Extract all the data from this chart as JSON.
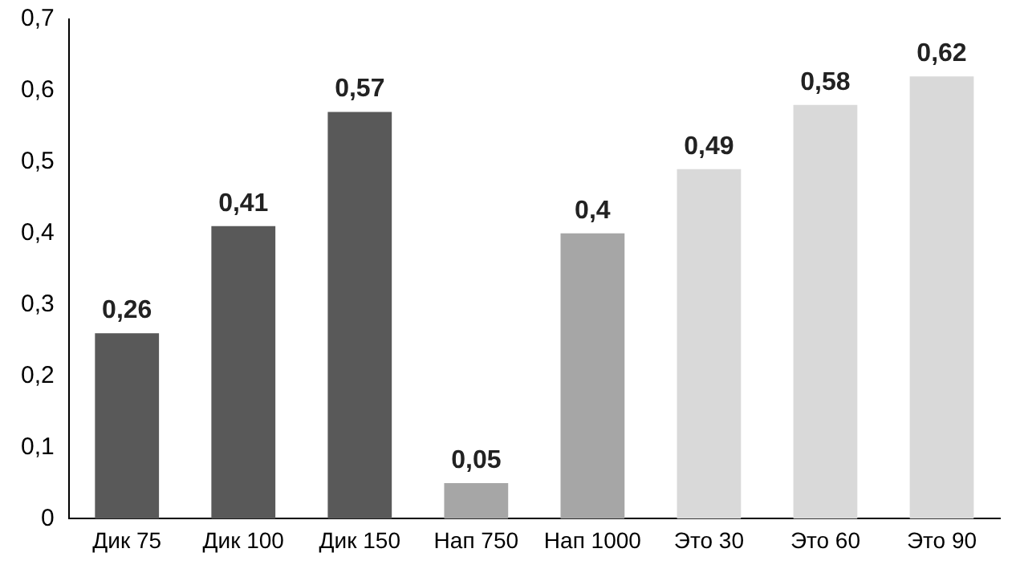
{
  "chart_data": {
    "type": "bar",
    "categories": [
      "Дик 75",
      "Дик 100",
      "Дик 150",
      "Нап 750",
      "Нап 1000",
      "Это 30",
      "Это 60",
      "Это 90"
    ],
    "values": [
      0.26,
      0.41,
      0.57,
      0.05,
      0.4,
      0.49,
      0.58,
      0.62
    ],
    "colors": [
      "#595959",
      "#595959",
      "#595959",
      "#a6a6a6",
      "#a6a6a6",
      "#d9d9d9",
      "#d9d9d9",
      "#d9d9d9"
    ],
    "value_labels": [
      "0,26",
      "0,41",
      "0,57",
      "0,05",
      "0,4",
      "0,49",
      "0,58",
      "0,62"
    ],
    "ylim": [
      0,
      0.7
    ],
    "yticks": [
      0,
      {
        "value": 0.1,
        "label": "0,1"
      },
      {
        "value": 0.2,
        "label": "0,2"
      },
      {
        "value": 0.3,
        "label": "0,3"
      },
      {
        "value": 0.4,
        "label": "0,4"
      },
      {
        "value": 0.5,
        "label": "0,5"
      },
      {
        "value": 0.6,
        "label": "0,6"
      },
      {
        "value": 0.7,
        "label": "0,7"
      }
    ],
    "grid": false,
    "legend": false
  }
}
